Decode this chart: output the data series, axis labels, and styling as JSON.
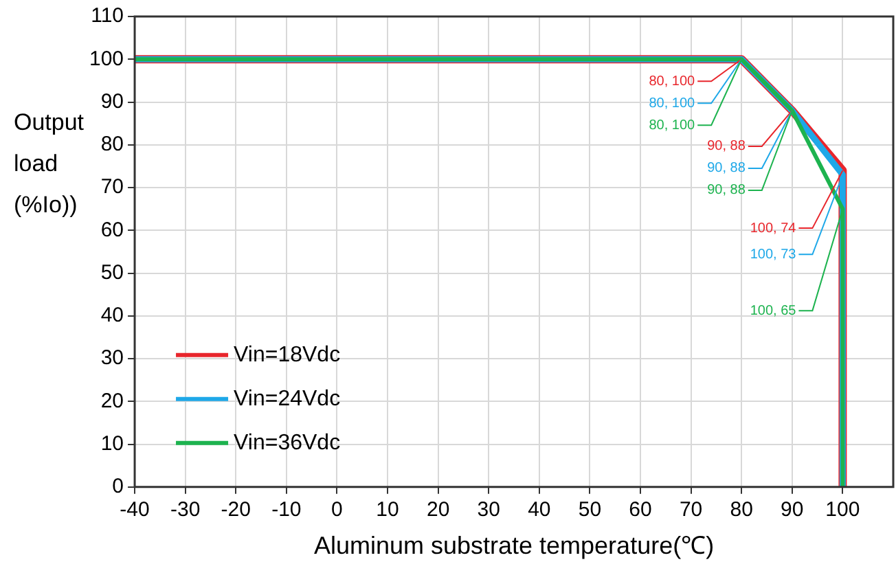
{
  "chart_data": {
    "type": "line",
    "xlabel": "Aluminum substrate temperature(℃)",
    "ylabel": "Output load (%Io))",
    "xlim": [
      -40,
      110
    ],
    "xticks": [
      -40,
      -30,
      -20,
      -10,
      0,
      10,
      20,
      30,
      40,
      50,
      60,
      70,
      80,
      90,
      100
    ],
    "ylim": [
      0,
      110
    ],
    "yticks": [
      0,
      10,
      20,
      30,
      40,
      50,
      60,
      70,
      80,
      90,
      100,
      110
    ],
    "grid": true,
    "legend": "bottom left",
    "marker": "none",
    "line_style": "solid",
    "series": [
      {
        "name": "Vin=18Vdc",
        "color": "#e8262c",
        "x": [
          -40,
          80,
          90,
          100,
          100
        ],
        "values": [
          100,
          100,
          88,
          74,
          0
        ]
      },
      {
        "name": "Vin=24Vdc",
        "color": "#1ea8e8",
        "x": [
          -40,
          80,
          90,
          100,
          100
        ],
        "values": [
          100,
          100,
          88,
          73,
          0
        ]
      },
      {
        "name": "Vin=36Vdc",
        "color": "#1db34f",
        "x": [
          -40,
          80,
          90,
          100,
          100
        ],
        "values": [
          100,
          100,
          88,
          65,
          0
        ]
      }
    ],
    "annotations": [
      {
        "text": "80, 100",
        "x": 80,
        "y": 100
      },
      {
        "text": "80, 100",
        "x": 80,
        "y": 100
      },
      {
        "text": "80, 100",
        "x": 80,
        "y": 100
      },
      {
        "text": "90, 88",
        "x": 90,
        "y": 88
      },
      {
        "text": "90, 88",
        "x": 90,
        "y": 88
      },
      {
        "text": "90, 88",
        "x": 90,
        "y": 88
      },
      {
        "text": "100, 74",
        "x": 100,
        "y": 74
      },
      {
        "text": "100, 73",
        "x": 100,
        "y": 73
      },
      {
        "text": "100, 65",
        "x": 100,
        "y": 65
      }
    ]
  }
}
